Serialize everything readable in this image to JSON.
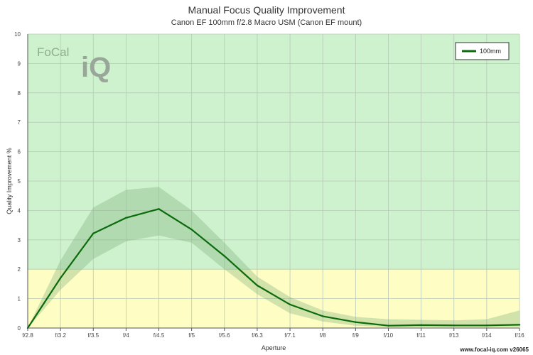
{
  "chart_data": {
    "type": "line",
    "title": "Manual Focus Quality Improvement",
    "subtitle": "Canon EF 100mm f/2.8 Macro USM (Canon EF mount)",
    "xlabel": "Aperture",
    "ylabel": "Quality Improvement %",
    "categories": [
      "f/2.8",
      "f/3.2",
      "f/3.5",
      "f/4",
      "f/4.5",
      "f/5",
      "f/5.6",
      "f/6.3",
      "f/7.1",
      "f/8",
      "f/9",
      "f/10",
      "f/11",
      "f/13",
      "f/14",
      "f/16"
    ],
    "ylim": [
      0,
      10
    ],
    "yticks": [
      "0",
      "1",
      "2",
      "3",
      "4",
      "5",
      "6",
      "7",
      "8",
      "9",
      "10"
    ],
    "grid": true,
    "legend_position": "top-right",
    "bands": [
      {
        "from": 0,
        "to": 2,
        "color": "#fdfdc4"
      },
      {
        "from": 2,
        "to": 10,
        "color": "#cdf2cd"
      }
    ],
    "series": [
      {
        "name": "100mm",
        "color": "#0b6b0b",
        "values": [
          0.0,
          1.7,
          3.22,
          3.75,
          4.05,
          3.35,
          2.45,
          1.45,
          0.8,
          0.4,
          0.2,
          0.08,
          0.1,
          0.09,
          0.09,
          0.11
        ],
        "upper": [
          0.0,
          2.3,
          4.1,
          4.7,
          4.8,
          4.0,
          2.9,
          1.75,
          1.05,
          0.6,
          0.38,
          0.3,
          0.28,
          0.26,
          0.3,
          0.6
        ],
        "lower": [
          0.0,
          1.3,
          2.35,
          2.95,
          3.15,
          2.9,
          2.0,
          1.15,
          0.5,
          0.22,
          0.08,
          0.03,
          0.03,
          0.03,
          0.03,
          0.04
        ]
      }
    ]
  },
  "logo": {
    "word": "FoCal",
    "mark": "iQ"
  },
  "watermark": "www.focal-iq.com  v26065"
}
